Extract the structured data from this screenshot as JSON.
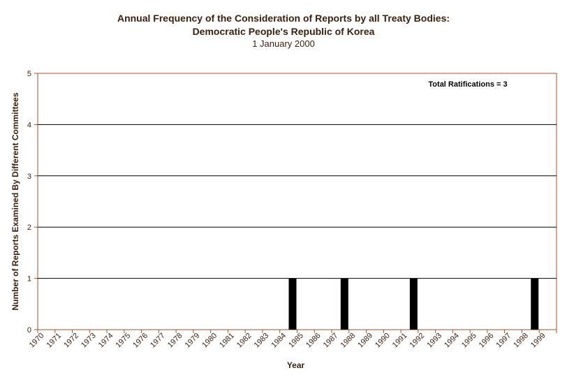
{
  "chart_data": {
    "type": "bar",
    "title": "Annual Frequency of the Consideration of Reports by all Treaty Bodies:",
    "subtitle": "Democratic People's Republic of Korea",
    "date": "1 January 2000",
    "xlabel": "Year",
    "ylabel": "Number of Reports Examined By Different Committees",
    "ylim": [
      0,
      5
    ],
    "yticks": [
      "0",
      "1",
      "2",
      "3",
      "4",
      "5"
    ],
    "grid": true,
    "annotation": "Total Ratifications = 3",
    "categories": [
      "1970",
      "1971",
      "1972",
      "1973",
      "1974",
      "1975",
      "1976",
      "1977",
      "1978",
      "1979",
      "1980",
      "1981",
      "1982",
      "1983",
      "1984",
      "1985",
      "1986",
      "1987",
      "1988",
      "1989",
      "1990",
      "1991",
      "1992",
      "1993",
      "1994",
      "1995",
      "1996",
      "1997",
      "1998",
      "1999"
    ],
    "values": [
      0,
      0,
      0,
      0,
      0,
      0,
      0,
      0,
      0,
      0,
      0,
      0,
      0,
      0,
      1,
      0,
      0,
      1,
      0,
      0,
      0,
      1,
      0,
      0,
      0,
      0,
      0,
      0,
      1,
      0
    ]
  },
  "colors": {
    "grid": "#000000",
    "axis": "#a0522d",
    "bar": "#000000",
    "text": "#3a1f0e"
  }
}
